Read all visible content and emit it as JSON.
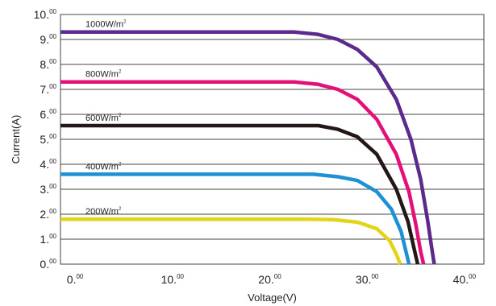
{
  "chart_data": {
    "type": "line",
    "title": "",
    "xlabel": "Voltage(V)",
    "ylabel": "Current(A)",
    "xlim": [
      -1.5,
      42
    ],
    "ylim": [
      0,
      10
    ],
    "grid": true,
    "x_ticks": [
      {
        "main": "0.",
        "sup": "00",
        "value": 0
      },
      {
        "main": "10.",
        "sup": "00",
        "value": 10
      },
      {
        "main": "20.",
        "sup": "00",
        "value": 20
      },
      {
        "main": "30.",
        "sup": "00",
        "value": 30
      },
      {
        "main": "40.",
        "sup": "00",
        "value": 40
      }
    ],
    "y_ticks": [
      {
        "main": "0.",
        "sup": "00",
        "value": 0
      },
      {
        "main": "1.",
        "sup": "00",
        "value": 1
      },
      {
        "main": "2.",
        "sup": "00",
        "value": 2
      },
      {
        "main": "3.",
        "sup": "00",
        "value": 3
      },
      {
        "main": "4.",
        "sup": "00",
        "value": 4
      },
      {
        "main": "5.",
        "sup": "00",
        "value": 5
      },
      {
        "main": "6.",
        "sup": "00",
        "value": 6
      },
      {
        "main": "7.",
        "sup": "00",
        "value": 7
      },
      {
        "main": "8.",
        "sup": "00",
        "value": 8
      },
      {
        "main": "9.",
        "sup": "00",
        "value": 9
      },
      {
        "main": "10.",
        "sup": "00",
        "value": 10
      }
    ],
    "series": [
      {
        "name": "1000W/m²",
        "label_main": "1000W/m",
        "label_sup": "2",
        "color": "#5b2a8c",
        "x": [
          -1.5,
          22.5,
          25.0,
          27.0,
          29.0,
          31.0,
          33.0,
          34.5,
          35.5,
          36.2,
          36.7,
          36.9
        ],
        "y": [
          9.3,
          9.3,
          9.2,
          9.0,
          8.6,
          7.9,
          6.6,
          5.0,
          3.4,
          1.8,
          0.5,
          0
        ]
      },
      {
        "name": "800W/m²",
        "label_main": "800W/m",
        "label_sup": "2",
        "color": "#e4107a",
        "x": [
          -1.5,
          22.5,
          25.0,
          27.0,
          29.0,
          31.0,
          33.0,
          34.3,
          35.0,
          35.5,
          35.8
        ],
        "y": [
          7.3,
          7.3,
          7.2,
          7.0,
          6.6,
          5.8,
          4.4,
          2.9,
          1.6,
          0.5,
          0
        ]
      },
      {
        "name": "600W/m²",
        "label_main": "600W/m",
        "label_sup": "2",
        "color": "#231815",
        "x": [
          -1.5,
          25.0,
          27.0,
          29.0,
          31.0,
          33.0,
          34.2,
          34.9,
          35.2
        ],
        "y": [
          5.55,
          5.55,
          5.4,
          5.1,
          4.4,
          3.0,
          1.7,
          0.5,
          0
        ]
      },
      {
        "name": "400W/m²",
        "label_main": "400W/m",
        "label_sup": "2",
        "color": "#1e90d6",
        "x": [
          -1.5,
          24.5,
          27.0,
          29.0,
          31.0,
          32.5,
          33.5,
          34.0,
          34.3
        ],
        "y": [
          3.6,
          3.6,
          3.5,
          3.35,
          2.9,
          2.2,
          1.3,
          0.5,
          0
        ]
      },
      {
        "name": "200W/m²",
        "label_main": "200W/m",
        "label_sup": "2",
        "color": "#e3d41a",
        "x": [
          -1.5,
          24.0,
          26.5,
          29.0,
          31.0,
          32.3,
          33.0,
          33.4
        ],
        "y": [
          1.8,
          1.8,
          1.78,
          1.68,
          1.42,
          0.95,
          0.4,
          0
        ]
      }
    ]
  }
}
